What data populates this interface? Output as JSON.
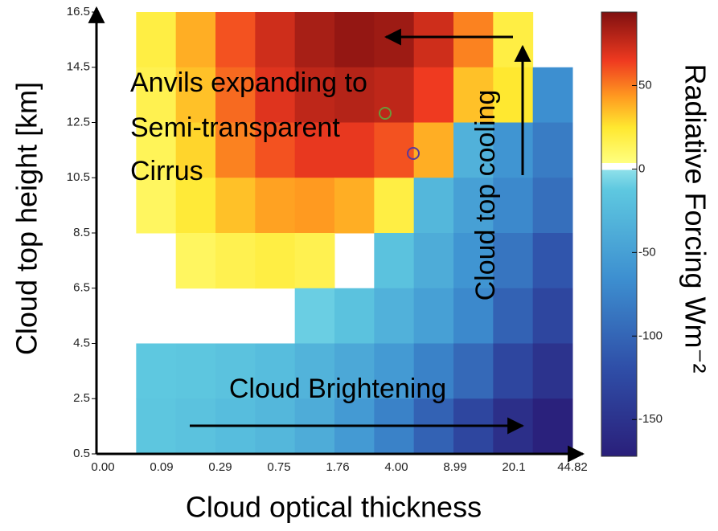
{
  "chart_data": {
    "type": "heatmap",
    "x_label": "Cloud optical thickness",
    "y_label": "Cloud top height [km]",
    "categories": [
      "0.00",
      "0.09",
      "0.29",
      "0.75",
      "1.76",
      "4.00",
      "8.99",
      "20.1",
      "44.82"
    ],
    "ylim": [
      0.5,
      16.5
    ],
    "yticks": [
      0.5,
      2.5,
      4.5,
      6.5,
      8.5,
      10.5,
      12.5,
      14.5,
      16.5
    ],
    "z": [
      [
        null,
        15,
        35,
        55,
        70,
        82,
        88,
        85,
        70,
        45,
        15,
        null
      ],
      [
        null,
        12,
        30,
        50,
        65,
        75,
        78,
        75,
        60,
        30,
        20,
        -70
      ],
      [
        null,
        10,
        25,
        45,
        55,
        62,
        62,
        55,
        35,
        -40,
        -65,
        -85
      ],
      [
        null,
        8,
        18,
        30,
        38,
        40,
        35,
        15,
        -35,
        -55,
        -75,
        -95
      ],
      [
        null,
        null,
        8,
        12,
        15,
        12,
        null,
        -25,
        -45,
        -65,
        -90,
        -115
      ],
      [
        null,
        null,
        null,
        null,
        null,
        -15,
        -25,
        -40,
        -55,
        -75,
        -105,
        -130
      ],
      [
        null,
        -20,
        -22,
        -25,
        -30,
        -38,
        -48,
        -60,
        -80,
        -100,
        -130,
        -150
      ],
      [
        null,
        -22,
        -25,
        -30,
        -35,
        -45,
        -60,
        -80,
        -105,
        -130,
        -155,
        -170
      ]
    ],
    "colorbar_label": "Radiative Forcing  Wm⁻²",
    "clim": [
      -172,
      94
    ],
    "cticks": [
      50,
      0,
      -50,
      -100,
      -150
    ],
    "annotations": {
      "anvils": [
        "Anvils expanding to",
        "Semi-transparent",
        "Cirrus"
      ],
      "cooling": "Cloud top cooling",
      "brightening": "Cloud Brightening"
    }
  }
}
